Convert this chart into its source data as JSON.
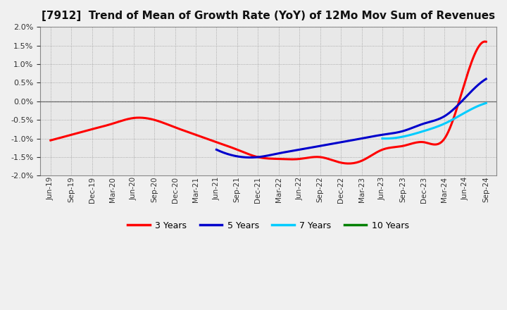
{
  "title": "[7912]  Trend of Mean of Growth Rate (YoY) of 12Mo Mov Sum of Revenues",
  "title_fontsize": 11,
  "background_color": "#f0f0f0",
  "plot_bg_color": "#e8e8e8",
  "grid_color": "#999999",
  "ylim": [
    -0.02,
    0.02
  ],
  "yticks": [
    -0.02,
    -0.015,
    -0.01,
    -0.005,
    0.0,
    0.005,
    0.01,
    0.015,
    0.02
  ],
  "x_labels": [
    "Jun-19",
    "Sep-19",
    "Dec-19",
    "Mar-20",
    "Jun-20",
    "Sep-20",
    "Dec-20",
    "Mar-21",
    "Jun-21",
    "Sep-21",
    "Dec-21",
    "Mar-22",
    "Jun-22",
    "Sep-22",
    "Dec-22",
    "Mar-23",
    "Jun-23",
    "Sep-23",
    "Dec-23",
    "Mar-24",
    "Jun-24",
    "Sep-24"
  ],
  "series_3y_x": [
    0,
    1,
    2,
    3,
    4,
    5,
    6,
    7,
    8,
    9,
    10,
    11,
    12,
    13,
    14,
    15,
    16,
    17,
    18,
    19,
    20,
    21
  ],
  "series_3y_y": [
    -0.0105,
    -0.009,
    -0.0075,
    -0.006,
    -0.0045,
    -0.005,
    -0.007,
    -0.009,
    -0.011,
    -0.013,
    -0.015,
    -0.0155,
    -0.0155,
    -0.015,
    -0.0165,
    -0.016,
    -0.013,
    -0.012,
    -0.011,
    -0.01,
    0.0055,
    0.016
  ],
  "series_5y_x": [
    8,
    9,
    10,
    11,
    12,
    13,
    14,
    15,
    16,
    17,
    18,
    19,
    20,
    21
  ],
  "series_5y_y": [
    -0.013,
    -0.0148,
    -0.015,
    -0.014,
    -0.013,
    -0.012,
    -0.011,
    -0.01,
    -0.009,
    -0.008,
    -0.006,
    -0.004,
    0.001,
    0.006
  ],
  "series_7y_x": [
    16,
    17,
    18,
    19,
    20,
    21
  ],
  "series_7y_y": [
    -0.01,
    -0.0095,
    -0.008,
    -0.006,
    -0.003,
    -0.0005
  ],
  "series_10y_x": [],
  "series_10y_y": [],
  "color_3y": "#ff0000",
  "color_5y": "#0000cc",
  "color_7y": "#00ccff",
  "color_10y": "#008000",
  "linewidth": 2.2,
  "legend_labels": [
    "3 Years",
    "5 Years",
    "7 Years",
    "10 Years"
  ],
  "legend_colors": [
    "#ff0000",
    "#0000cc",
    "#00ccff",
    "#008000"
  ]
}
